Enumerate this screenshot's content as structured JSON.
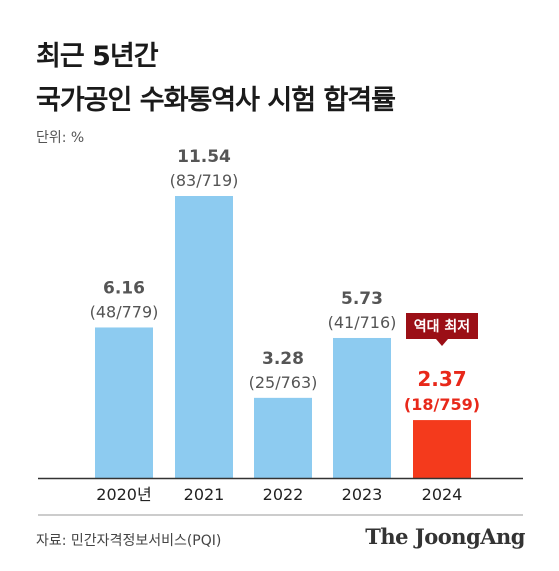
{
  "header": {
    "title_line1": "최근 5년간",
    "title_line2": "국가공인 수화통역사 시험 합격률",
    "unit": "단위: %"
  },
  "footer": {
    "source": "자료: 민간자격정보서비스(PQI)",
    "brand": "The JoongAng"
  },
  "colors": {
    "bar": "#8dcbf0",
    "highlight": "#f43a1c",
    "highlight_text": "#e8281a",
    "callout_bg": "#9b0f16",
    "value_text": "#555555",
    "axis": "#333333"
  },
  "chart_data": {
    "type": "bar",
    "categories": [
      "2020년",
      "2021",
      "2022",
      "2023",
      "2024"
    ],
    "values": [
      6.16,
      11.54,
      3.28,
      5.73,
      2.37
    ],
    "value_labels": [
      "6.16",
      "11.54",
      "3.28",
      "5.73",
      "2.37"
    ],
    "sub_labels": [
      "(48/779)",
      "(83/719)",
      "(25/763)",
      "(41/716)",
      "(18/759)"
    ],
    "highlight_index": 4,
    "annotation": "역대 최저",
    "ylim": [
      0,
      11.54
    ],
    "title": "최근 5년간 국가공인 수화통역사 시험 합격률",
    "ylabel": "단위: %",
    "grid": false
  }
}
